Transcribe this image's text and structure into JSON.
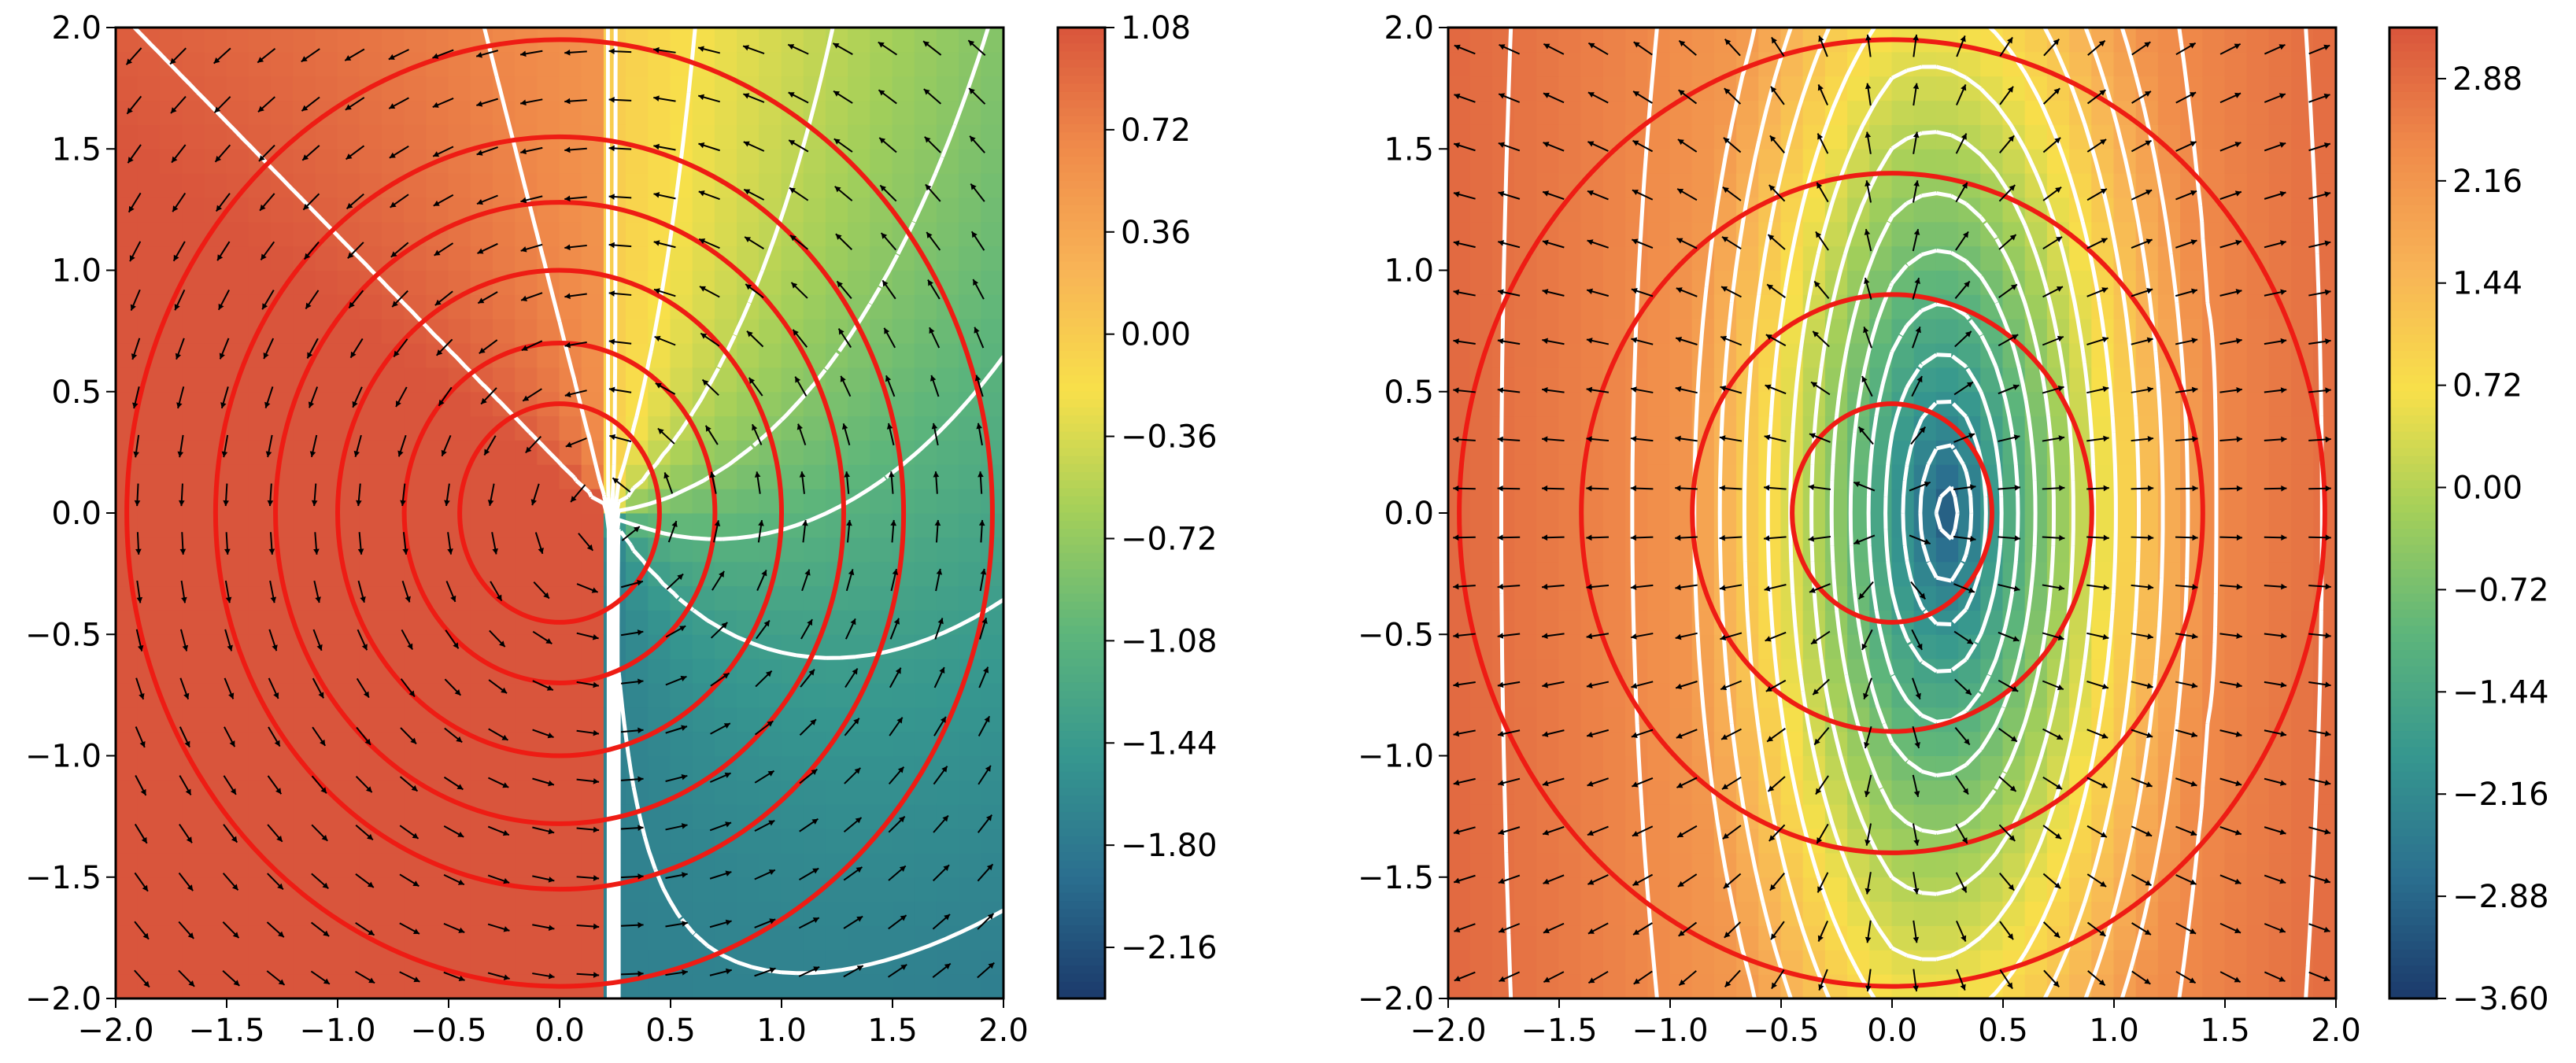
{
  "chart_data": [
    {
      "type": "heatmap",
      "xlim": [
        -2.0,
        2.0
      ],
      "ylim": [
        -2.0,
        2.0
      ],
      "xticks": [
        "−2.0",
        "−1.5",
        "−1.0",
        "−0.5",
        "0.0",
        "0.5",
        "1.0",
        "1.5",
        "2.0"
      ],
      "yticks": [
        "2.0",
        "1.5",
        "1.0",
        "0.5",
        "0.0",
        "−0.5",
        "−1.0",
        "−1.5",
        "−2.0"
      ],
      "colorbar": {
        "range": [
          -2.34,
          1.08
        ],
        "ticks": [
          1.08,
          0.72,
          0.36,
          0.0,
          -0.36,
          -0.72,
          -1.08,
          -1.44,
          -1.8,
          -2.16
        ],
        "tick_labels": [
          "1.08",
          "0.72",
          "0.36",
          "0.00",
          "−0.36",
          "−0.72",
          "−1.08",
          "−1.44",
          "−1.80",
          "−2.16"
        ]
      },
      "field": "angular",
      "red_circle_radii": [
        0.45,
        0.7,
        1.0,
        1.28,
        1.55,
        1.95
      ],
      "red_circle_center": [
        0.0,
        0.0
      ],
      "cut_x": 0.22,
      "contour_levels": [
        -2.0,
        -1.7,
        -1.4,
        -1.1,
        -0.8,
        -0.5,
        -0.2,
        0.1,
        0.4,
        0.7,
        1.0
      ],
      "grid": false
    },
    {
      "type": "heatmap",
      "xlim": [
        -2.0,
        2.0
      ],
      "ylim": [
        -2.0,
        2.0
      ],
      "xticks": [
        "−2.0",
        "−1.5",
        "−1.0",
        "−0.5",
        "0.0",
        "0.5",
        "1.0",
        "1.5",
        "2.0"
      ],
      "yticks": [
        "2.0",
        "1.5",
        "1.0",
        "0.5",
        "0.0",
        "−0.5",
        "−1.0",
        "−1.5",
        "−2.0"
      ],
      "colorbar": {
        "range": [
          -3.6,
          3.24
        ],
        "ticks": [
          2.88,
          2.16,
          1.44,
          0.72,
          0.0,
          -0.72,
          -1.44,
          -2.16,
          -2.88,
          -3.6
        ],
        "tick_labels": [
          "2.88",
          "2.16",
          "1.44",
          "0.72",
          "0.00",
          "−0.72",
          "−1.44",
          "−2.16",
          "−2.88",
          "−3.60"
        ]
      },
      "field": "radial",
      "red_circle_radii": [
        0.45,
        0.9,
        1.4,
        1.95
      ],
      "red_circle_center": [
        0.0,
        0.0
      ],
      "cut_x": 0.25,
      "contour_levels": [
        -3.2,
        -2.8,
        -2.4,
        -2.0,
        -1.6,
        -1.2,
        -0.8,
        -0.4,
        0.0,
        0.4,
        0.8,
        1.2,
        1.6,
        2.0,
        2.4,
        2.8
      ],
      "grid": false
    }
  ],
  "colors": {
    "circle": "#ee1c14",
    "contour": "#ffffff",
    "arrow": "#000000",
    "colormap": [
      "#1b3a6b",
      "#2b6f8f",
      "#36978f",
      "#5db57b",
      "#a3cf5a",
      "#f8e04a",
      "#f8b456",
      "#f08b4a",
      "#d9553c"
    ]
  }
}
